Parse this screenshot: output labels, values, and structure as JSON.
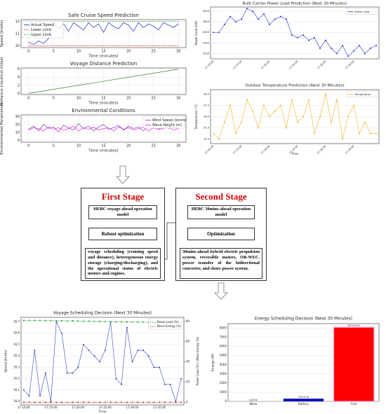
{
  "chart_data": [
    {
      "type": "line",
      "title": "Safe Cruise Speed Prediction",
      "x_label": "Time (minutes)",
      "y_label": "Speed (knots)",
      "x": [
        0,
        1,
        2,
        3,
        4,
        5,
        6,
        7,
        8,
        9,
        10,
        11,
        12,
        13,
        14,
        15,
        16,
        17,
        18,
        19,
        20,
        21,
        22,
        23,
        24,
        25,
        26,
        27,
        28,
        29,
        30
      ],
      "series": [
        {
          "name": "Actual Speed",
          "color": "#1f1fd0",
          "values": [
            10.3,
            10.1,
            10.4,
            10.2,
            10.6,
            11.9,
            11.4,
            11.8,
            11.2,
            11.9,
            11.6,
            11.3,
            11.9,
            11.5,
            11.8,
            11.1,
            11.9,
            11.6,
            11.4,
            11.9,
            11.7,
            11.2,
            11.9,
            11.5,
            11.8,
            11.6,
            11.3,
            11.9,
            11.7,
            11.5,
            11.8
          ]
        },
        {
          "name": "Lower Limit",
          "color": "#d62728",
          "line_style": "dashed",
          "values": [
            10,
            10,
            10,
            10,
            10,
            10,
            10,
            10,
            10,
            10,
            10,
            10,
            10,
            10,
            10,
            10,
            10,
            10,
            10,
            10,
            10,
            10,
            10,
            10,
            10,
            10,
            10,
            10,
            10,
            10,
            10
          ]
        },
        {
          "name": "Upper Limit",
          "color": "#2ca02c",
          "line_style": "dashed",
          "values": [
            12,
            12,
            12,
            12,
            12,
            12,
            12,
            12,
            12,
            12,
            12,
            12,
            12,
            12,
            12,
            12,
            12,
            12,
            12,
            12,
            12,
            12,
            12,
            12,
            12,
            12,
            12,
            12,
            12,
            12,
            12
          ]
        }
      ],
      "xlim": [
        -1.5,
        31.5
      ],
      "ylim": [
        9.85,
        12.15
      ],
      "xticks": [
        0,
        5,
        10,
        15,
        20,
        25,
        30
      ],
      "yticks": [
        10,
        11,
        12
      ],
      "grid": true,
      "legend": "upper left"
    },
    {
      "type": "line",
      "title": "Voyage Distance Prediction",
      "x_label": "Time (minutes)",
      "y_label": "Distance (nautical miles)",
      "x": [
        0,
        30
      ],
      "series": [
        {
          "color": "#2e7d32",
          "values": [
            0,
            6
          ]
        }
      ],
      "xlim": [
        -1.5,
        31.5
      ],
      "ylim": [
        -0.3,
        6.3
      ],
      "xticks": [
        0,
        5,
        10,
        15,
        20,
        25,
        30
      ],
      "yticks": [
        0,
        2,
        4,
        6
      ],
      "grid": true
    },
    {
      "type": "line",
      "title": "Environmental Conditions",
      "x_label": "Time (minutes)",
      "y_label": "Environmental Parameters",
      "x": [
        0,
        1,
        2,
        3,
        4,
        5,
        6,
        7,
        8,
        9,
        10,
        11,
        12,
        13,
        14,
        15,
        16,
        17,
        18,
        19,
        20,
        21,
        22,
        23,
        24,
        25,
        26,
        27,
        28,
        29,
        30
      ],
      "series": [
        {
          "name": "Wind Speed (knots)",
          "color": "#7b2fbf",
          "values": [
            14,
            18,
            12,
            20,
            15,
            17,
            11,
            19,
            16,
            13,
            21,
            15,
            18,
            12,
            17,
            20,
            14,
            16,
            19,
            13,
            18,
            15,
            17,
            12,
            20,
            16,
            14,
            19,
            15,
            17,
            16
          ]
        },
        {
          "name": "Wave Height (m)",
          "color": "#e020d0",
          "values": [
            13,
            16,
            15,
            12,
            17,
            14,
            16,
            13,
            15,
            18,
            12,
            16,
            14,
            17,
            13,
            15,
            16,
            12,
            17,
            14,
            16,
            13,
            15,
            17,
            12,
            16,
            14,
            15,
            17,
            13,
            15
          ]
        }
      ],
      "xlim": [
        -1.5,
        31.5
      ],
      "ylim": [
        -2,
        32
      ],
      "xticks": [
        0,
        5,
        10,
        15,
        20,
        25,
        30
      ],
      "yticks": [
        0,
        10,
        20,
        30
      ],
      "grid": true,
      "legend": "upper right"
    },
    {
      "type": "line",
      "title": "Bulk Carrier Power Load Prediction (Next 30 Minutes)",
      "y_label": "Power Load (kW)",
      "categories": [
        "17:10:00",
        null,
        null,
        null,
        null,
        "17:15:00",
        null,
        null,
        null,
        null,
        "17:20:00",
        null,
        null,
        null,
        null,
        "17:25:00",
        null,
        null,
        null,
        null,
        "17:30:00",
        null,
        null,
        null,
        null,
        "17:35:00",
        null,
        null,
        null,
        null
      ],
      "series": [
        {
          "name": "Power Load",
          "color": "#2233cc",
          "markers": true,
          "values": [
            2600,
            2600,
            2750,
            2900,
            2800,
            2850,
            3050,
            3000,
            2850,
            2950,
            2750,
            2850,
            2900,
            2850,
            2550,
            2500,
            2550,
            2450,
            2500,
            2300,
            2450,
            2300,
            2200,
            2350,
            2150,
            2250,
            2350,
            2200,
            2300,
            2350
          ]
        }
      ],
      "ylim": [
        2100,
        3080
      ],
      "yticks": [
        2200,
        2400,
        2600,
        2800,
        3000
      ],
      "grid": true,
      "legend": "upper right",
      "rotate_x_labels": true
    },
    {
      "type": "line",
      "title": "Outdoor Temperature Prediction (Next 30 Minutes)",
      "x_label": "Time",
      "y_label": "Temperature (°C)",
      "categories": [
        "17:10:00",
        null,
        null,
        null,
        null,
        "17:15:00",
        null,
        null,
        null,
        null,
        "17:20:00",
        null,
        null,
        null,
        null,
        "17:25:00",
        null,
        null,
        null,
        null,
        "17:30:00",
        null,
        null,
        null,
        null,
        "17:35:00",
        null,
        null,
        null,
        null
      ],
      "series": [
        {
          "name": "Temperature",
          "color": "#f0b429",
          "markers": true,
          "values": [
            24.5,
            24.0,
            25.5,
            27.0,
            24.5,
            25.5,
            27.5,
            26.5,
            25.0,
            27.0,
            26.0,
            26.5,
            27.0,
            25.0,
            27.5,
            25.5,
            26.0,
            27.5,
            24.5,
            26.0,
            28.0,
            25.5,
            27.5,
            24.0,
            26.0,
            27.0,
            24.5,
            25.5,
            24.5,
            24.5
          ]
        }
      ],
      "ylim": [
        23.6,
        28.4
      ],
      "yticks": [
        {
          "value": 24,
          "label": "24.0"
        },
        {
          "value": 25,
          "label": "25.0"
        },
        {
          "value": 26,
          "label": "26.0"
        },
        {
          "value": 27,
          "label": "27.0"
        },
        {
          "value": 28,
          "label": "28.0"
        }
      ],
      "grid": true,
      "legend": "upper right",
      "rotate_x_labels": true
    },
    {
      "type": "line",
      "title": "Voyage Scheduling Decision (Next 30 Minutes)",
      "x_label": "Time",
      "y_label": "Speed (knots)",
      "y2_label": "Power Load (%) / Wave Energy (%)",
      "categories": [
        "17:10:00",
        null,
        null,
        null,
        null,
        "17:15:00",
        null,
        null,
        null,
        null,
        "17:20:00",
        null,
        null,
        null,
        null,
        "17:25:00",
        null,
        null,
        null,
        null,
        "17:30:00",
        null,
        null,
        null,
        null,
        "17:35:00",
        null,
        null,
        null,
        null
      ],
      "series": [
        {
          "color": "#3344bb",
          "markers": true,
          "values": [
            16.1,
            16.05,
            16.45,
            16.05,
            16.25,
            16.0,
            16.7,
            16.6,
            16.25,
            16.25,
            16.3,
            16.5,
            16.45,
            16.4,
            16.35,
            16.45,
            16.7,
            16.2,
            16.15,
            16.65,
            16.35,
            16.45,
            16.45,
            16.4,
            16.3,
            16.3,
            16.15,
            16.15,
            16.0,
            16.2
          ]
        },
        {
          "name": "Power Load (%)",
          "color": "#1f9e2f",
          "markers": true,
          "line_style": "dashed",
          "axis": "y2",
          "values": [
            81,
            81,
            81,
            81,
            80.8,
            80.8,
            80.6,
            80.6,
            80.5,
            80.5,
            80.4,
            80.2,
            80.2,
            80,
            80,
            79.8,
            79.8,
            79.6,
            79.6,
            79.5,
            79.4,
            79.3,
            79.2,
            79,
            79,
            78.9,
            78.8,
            78.7,
            78.6,
            78.5
          ]
        },
        {
          "name": "Wave Energy (%)",
          "color": "#d62728",
          "markers": true,
          "line_style": "dashed",
          "axis": "y2",
          "values": [
            0,
            0,
            0,
            0,
            0,
            0,
            0,
            0,
            0,
            0,
            0,
            0,
            0,
            0,
            0,
            0,
            0,
            0,
            0,
            0,
            0,
            0,
            0,
            0,
            0,
            0,
            0,
            0,
            0,
            0
          ]
        }
      ],
      "ylim": [
        15.97,
        16.74
      ],
      "yticks": [
        {
          "value": 16,
          "label": "16.0"
        },
        16.1,
        16.2,
        16.3,
        16.4,
        16.5,
        16.6,
        16.7
      ],
      "y2lim": [
        -2.5,
        84
      ],
      "y2ticks": [
        0,
        20,
        40,
        60,
        80
      ],
      "grid": true,
      "legend": "upper right"
    },
    {
      "type": "bar",
      "title": "Energy Scheduling Decision (Next 30 Minutes)",
      "y_label": "Energy (W)",
      "categories": [
        "Wave",
        "Battery",
        "Fuel"
      ],
      "values": [
        0,
        300,
        8100
      ],
      "value_labels": [
        "0.00 W",
        "300.00 W",
        "8100.00 W"
      ],
      "colors": [
        "#1010c0",
        "#1010c0",
        "#ff0000"
      ],
      "ylim": [
        0,
        8500
      ],
      "yticks": [
        0,
        1000,
        2000,
        3000,
        4000,
        5000,
        6000,
        7000,
        8000
      ],
      "grid": true
    }
  ],
  "diagram": {
    "stages": [
      {
        "title": "First Stage",
        "model": "HEBC voyage-ahead operation model",
        "method": "Robust optimization",
        "output": "voyage scheduling (cruising speed and distance), heterogeneous energy storage (charging/discharging), and the operational status of electric motors and engines."
      },
      {
        "title": "Second Stage",
        "model": "HEBC 30mins-ahead operation model",
        "method": "Optimization",
        "output": "30mins-ahead hybrid electric propulsion system, reversible motors, OB-WEC, power transfer of the bidirectional converter, and shore power system."
      }
    ]
  }
}
